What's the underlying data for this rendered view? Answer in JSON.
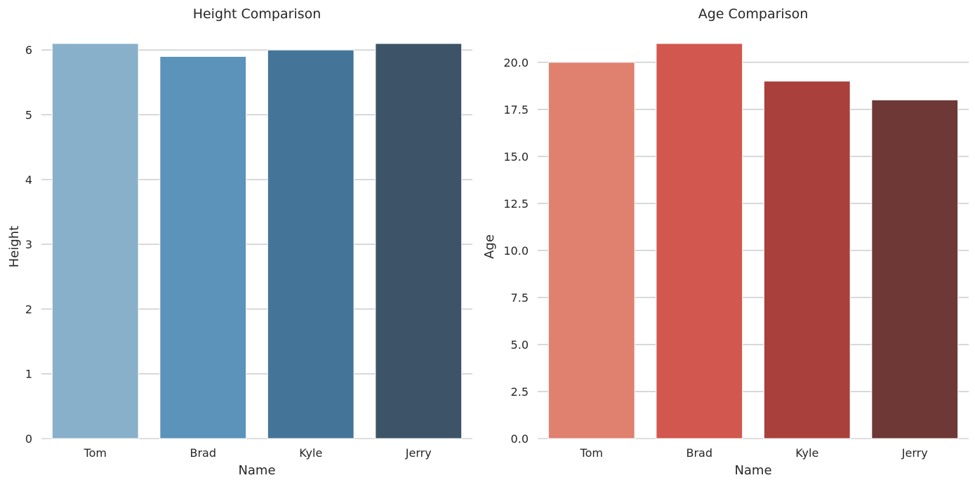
{
  "chart_data": [
    {
      "type": "bar",
      "title": "Height Comparison",
      "xlabel": "Name",
      "ylabel": "Height",
      "categories": [
        "Tom",
        "Brad",
        "Kyle",
        "Jerry"
      ],
      "values": [
        6.1,
        5.9,
        6.0,
        6.1
      ],
      "colors": [
        "#89b0ca",
        "#5b93ba",
        "#447598",
        "#3d5468"
      ],
      "ylim": [
        0,
        6.1
      ],
      "yticks": [
        0,
        1,
        2,
        3,
        4,
        5,
        6
      ],
      "ytick_labels": [
        "0",
        "1",
        "2",
        "3",
        "4",
        "5",
        "6"
      ],
      "grid": "horizontal"
    },
    {
      "type": "bar",
      "title": "Age Comparison",
      "xlabel": "Name",
      "ylabel": "Age",
      "categories": [
        "Tom",
        "Brad",
        "Kyle",
        "Jerry"
      ],
      "values": [
        20,
        21,
        19,
        18
      ],
      "colors": [
        "#e0806f",
        "#d2574e",
        "#a9403b",
        "#6d3836"
      ],
      "ylim": [
        0,
        21
      ],
      "yticks": [
        0,
        2.5,
        5,
        7.5,
        10,
        12.5,
        15,
        17.5,
        20
      ],
      "ytick_labels": [
        "0.0",
        "2.5",
        "5.0",
        "7.5",
        "10.0",
        "12.5",
        "15.0",
        "17.5",
        "20.0"
      ],
      "grid": "horizontal"
    }
  ]
}
